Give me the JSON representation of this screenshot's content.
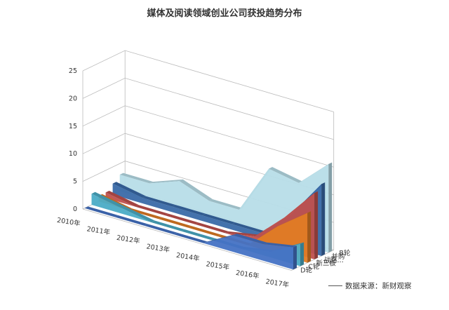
{
  "chart_data": {
    "type": "area",
    "title": "媒体及阅读领域创业公司获投趋势分布",
    "categories": [
      "2010年",
      "2011年",
      "2012年",
      "2013年",
      "2014年",
      "2015年",
      "2016年",
      "2017年"
    ],
    "ylim": [
      0,
      25
    ],
    "yticks": [
      0,
      5,
      10,
      15,
      20,
      25
    ],
    "series": [
      {
        "name": "D轮",
        "color": "#4472C4",
        "values": [
          0,
          0,
          0,
          0,
          0,
          3,
          3,
          4
        ]
      },
      {
        "name": "C轮",
        "color": "#4BACC6",
        "values": [
          2,
          1,
          0,
          0,
          0,
          0,
          1,
          4
        ]
      },
      {
        "name": "新三板",
        "color": "#E07C24",
        "values": [
          1,
          0,
          0,
          0,
          0,
          0,
          5,
          9
        ]
      },
      {
        "name": "战略…",
        "color": "#C0504D",
        "values": [
          1,
          0,
          0,
          0,
          0,
          1,
          6,
          12
        ]
      },
      {
        "name": "并购",
        "color": "#3A6AA8",
        "values": [
          2,
          1,
          1,
          1,
          1,
          1,
          6,
          13
        ]
      },
      {
        "name": "B轮",
        "color": "#B7DDE8",
        "values": [
          3,
          3,
          5,
          3,
          3,
          12,
          11,
          16
        ]
      }
    ],
    "grid": true
  },
  "source_note": "数据来源：新财观察"
}
